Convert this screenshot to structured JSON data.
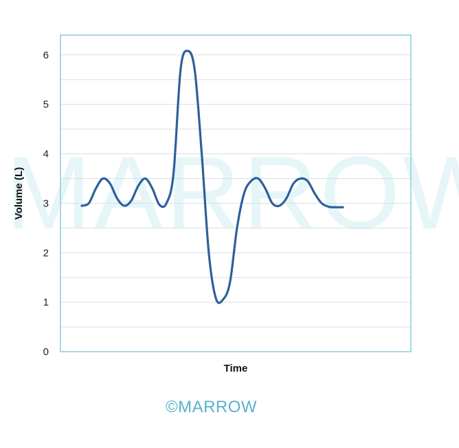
{
  "watermark": {
    "text": "MARROW",
    "color": "#e6f6f8"
  },
  "brand": {
    "text": "©MARROW",
    "color": "#55b3cf"
  },
  "colors": {
    "line": "#2e5f9b",
    "frame": "#8fd0dc",
    "grid": "#d8dfe2"
  },
  "chart_data": {
    "type": "line",
    "title": "",
    "xlabel": "Time",
    "ylabel": "Volume (L)",
    "ylim": [
      0,
      6.4
    ],
    "yticks": [
      0,
      1,
      2,
      3,
      4,
      5,
      6
    ],
    "grid": "horizontal",
    "legend": "none",
    "series": [
      {
        "x": [
          0,
          1,
          2,
          3,
          4,
          5,
          6,
          7,
          8,
          9,
          10,
          11,
          12,
          13,
          14,
          15,
          16,
          17,
          18,
          19,
          20,
          21,
          22,
          23,
          24,
          25,
          26,
          27,
          28,
          29,
          30,
          31,
          32,
          33,
          34,
          35,
          36,
          37
        ],
        "y": [
          2.95,
          3.0,
          3.3,
          3.5,
          3.4,
          3.1,
          2.95,
          3.05,
          3.35,
          3.5,
          3.3,
          2.97,
          3.0,
          3.6,
          5.7,
          6.08,
          5.7,
          4.0,
          2.0,
          1.08,
          1.05,
          1.4,
          2.5,
          3.2,
          3.45,
          3.5,
          3.3,
          3.0,
          2.95,
          3.1,
          3.4,
          3.5,
          3.45,
          3.2,
          3.0,
          2.93,
          2.92,
          2.92
        ]
      }
    ]
  }
}
